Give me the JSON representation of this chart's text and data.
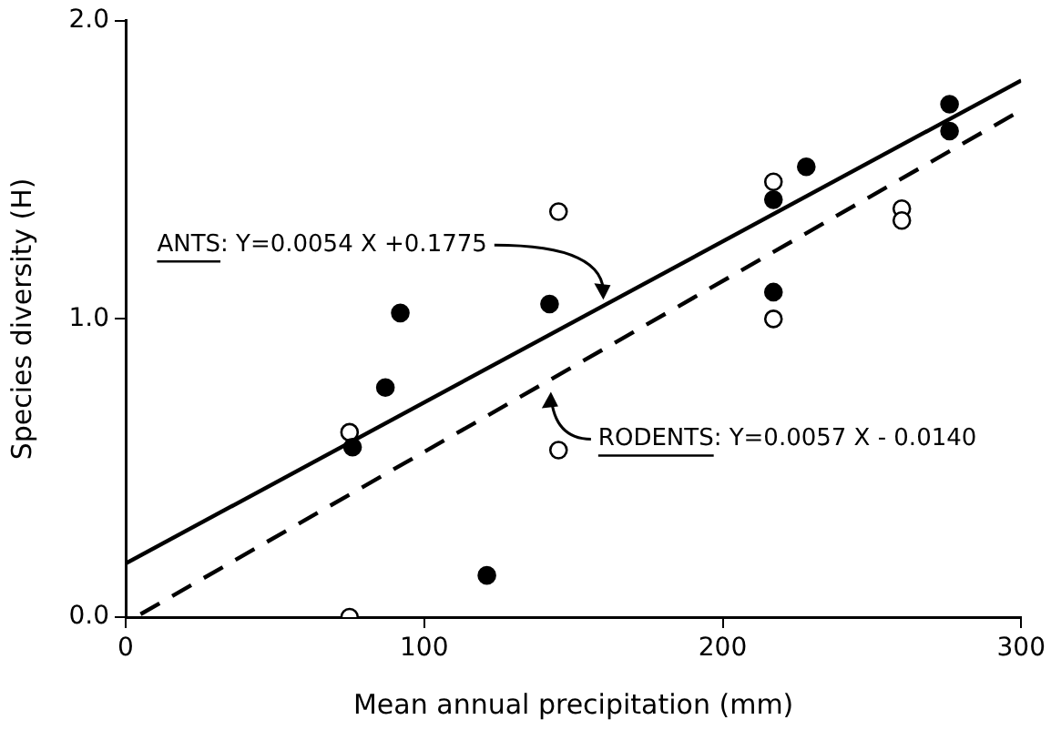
{
  "chart_data": {
    "type": "scatter",
    "xlabel": "Mean annual precipitation (mm)",
    "ylabel": "Species diversity (H)",
    "xlim": [
      0,
      300
    ],
    "xticks": [
      0,
      100,
      200,
      300
    ],
    "ylim": [
      0,
      2
    ],
    "yticks": [
      {
        "value": 0,
        "label": "0.0"
      },
      {
        "value": 1,
        "label": "1.0"
      },
      {
        "value": 2,
        "label": "2.0"
      }
    ],
    "grid": false,
    "marker": "circle",
    "series": [
      {
        "color": "#000000",
        "x": [
          76,
          87,
          92,
          121,
          142,
          217,
          228,
          217,
          276,
          276
        ],
        "values": [
          0.57,
          0.77,
          1.02,
          0.14,
          1.05,
          1.4,
          1.51,
          1.09,
          1.72,
          1.63
        ]
      },
      {
        "color": "#000000",
        "x": [
          75,
          75,
          145,
          145,
          217,
          217,
          260,
          260
        ],
        "values": [
          0.62,
          0.0,
          1.36,
          0.56,
          1.46,
          1.0,
          1.37,
          1.33
        ]
      },
      {
        "type": "line",
        "color": "#000000",
        "line_style": "solid",
        "marker": "none",
        "x": [
          0,
          300
        ],
        "values": [
          0.18,
          1.8
        ]
      },
      {
        "type": "line",
        "color": "#000000",
        "line_style": "dashed",
        "marker": "none",
        "x": [
          5,
          300
        ],
        "values": [
          0.01,
          1.7
        ]
      }
    ],
    "annotations": [
      {
        "text": "ANTS: Y=0.0054 X +0.1775",
        "x": 160,
        "y": 1.04
      },
      {
        "text": "RODENTS: Y=0.0057 X - 0.0140",
        "x": 140,
        "y": 0.78
      }
    ]
  }
}
